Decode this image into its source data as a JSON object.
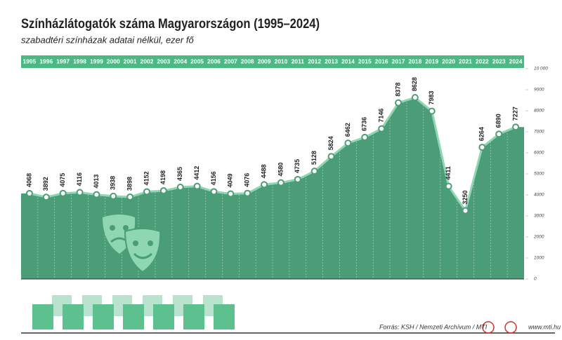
{
  "chart_data": {
    "type": "area",
    "title": "Színházlátogatók száma Magyarországon (1995–2024)",
    "subtitle": "szabadtéri színházak adatai nélkül, ezer fő",
    "categories": [
      "1995",
      "1996",
      "1997",
      "1998",
      "1999",
      "2000",
      "2001",
      "2002",
      "2003",
      "2004",
      "2005",
      "2006",
      "2007",
      "2008",
      "2009",
      "2010",
      "2011",
      "2012",
      "2013",
      "2014",
      "2015",
      "2016",
      "2017",
      "2018",
      "2019",
      "2020",
      "2021",
      "2022",
      "2023",
      "2024"
    ],
    "values": [
      4068,
      3892,
      4075,
      4116,
      4013,
      3938,
      3898,
      4152,
      4198,
      4365,
      4412,
      4156,
      4049,
      4076,
      4488,
      4580,
      4735,
      5128,
      5824,
      6462,
      6736,
      7146,
      8378,
      8628,
      7983,
      4411,
      3250,
      6264,
      6890,
      7227
    ],
    "color": "#4a9d77",
    "line_color": "#8fd6b3",
    "ylim": [
      0,
      10000
    ],
    "yticks": [
      0,
      1000,
      2000,
      3000,
      4000,
      5000,
      6000,
      7000,
      8000,
      9000,
      {
        "value": 10000,
        "label": "10 000"
      }
    ],
    "source": "Forrás: KSH / Nemzeti Archívum / MTI",
    "website": "www.mti.hu"
  }
}
